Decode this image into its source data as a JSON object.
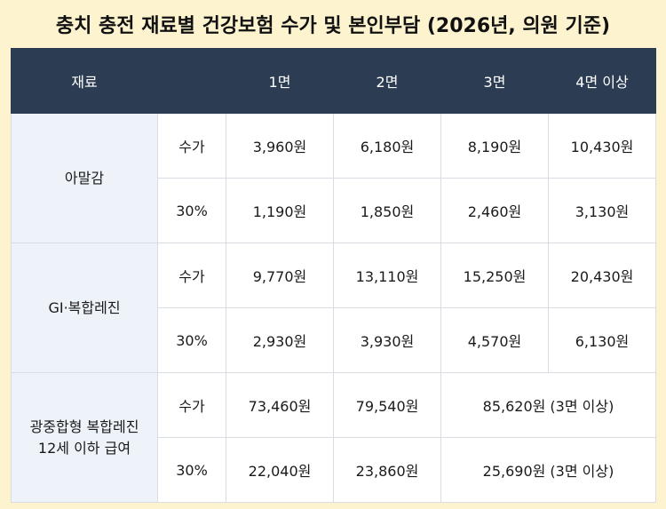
{
  "title": "충치 충전 재료별 건강보험 수가 및 본인부담 (2026년, 의원 기준)",
  "header": {
    "material": "재료",
    "blank": "",
    "cols": [
      "1면",
      "2면",
      "3면",
      "4면 이상"
    ]
  },
  "rows": {
    "amalgam": {
      "name": "아말감",
      "fee_label": "수가",
      "copay_label": "30%",
      "fee": [
        "3,960원",
        "6,180원",
        "8,190원",
        "10,430원"
      ],
      "copay": [
        "1,190원",
        "1,850원",
        "2,460원",
        "3,130원"
      ]
    },
    "gi": {
      "name": "GI·복합레진",
      "fee_label": "수가",
      "copay_label": "30%",
      "fee": [
        "9,770원",
        "13,110원",
        "15,250원",
        "20,430원"
      ],
      "copay": [
        "2,930원",
        "3,930원",
        "4,570원",
        "6,130원"
      ]
    },
    "light": {
      "name_line1": "광중합형 복합레진",
      "name_line2": "12세 이하 급여",
      "fee_label": "수가",
      "copay_label": "30%",
      "fee": [
        "73,460원",
        "79,540원",
        "85,620원 (3면 이상)"
      ],
      "copay": [
        "22,040원",
        "23,860원",
        "25,690원 (3면 이상)"
      ]
    }
  }
}
